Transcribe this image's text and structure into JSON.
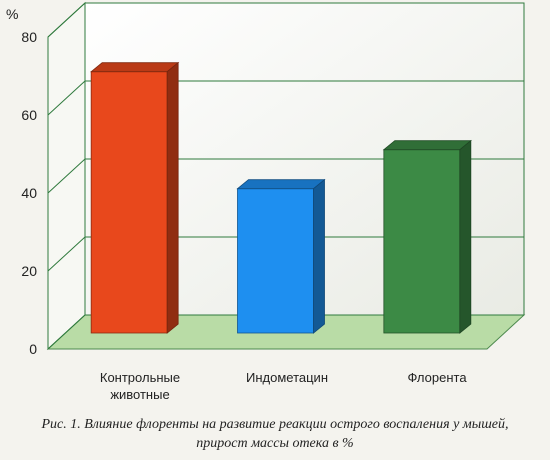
{
  "chart_data": {
    "type": "bar",
    "ylabel": "%",
    "ylim": [
      0,
      80
    ],
    "yticks": [
      0,
      20,
      40,
      60,
      80
    ],
    "grid": true,
    "categories": [
      "Контрольные животные",
      "Индометацин",
      "Флорента"
    ],
    "category_labels": [
      [
        "Контрольные",
        "животные"
      ],
      [
        "Индометацин"
      ],
      [
        "Флорента"
      ]
    ],
    "values": [
      67,
      37,
      47
    ],
    "colors": [
      "#e8481c",
      "#1e8ff0",
      "#3c8a45"
    ]
  },
  "caption": {
    "line1": "Рис. 1. Влияние флоренты на развитие реакции острого воспаления у мышей,",
    "line2": "прирост массы отека в %"
  }
}
